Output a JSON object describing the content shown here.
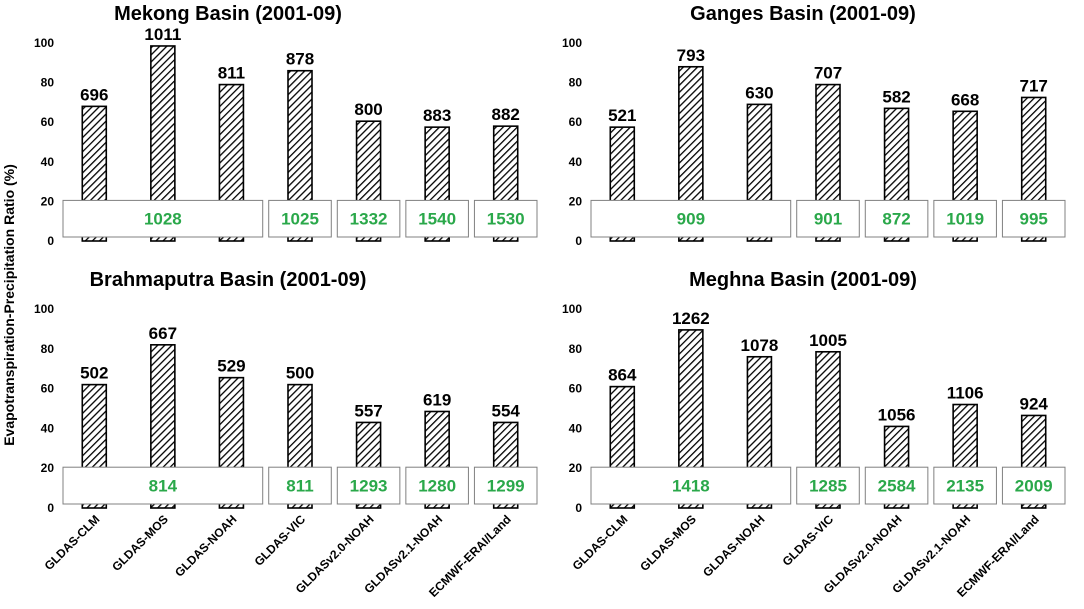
{
  "figure": {
    "y_axis_label": "Evapotranspiration-Precipitation Ratio (%)",
    "colors": {
      "bar_hatch": "#000000",
      "precip_text": "#2aa84a",
      "box_border": "#808080"
    }
  },
  "chart_data": [
    {
      "type": "bar",
      "title": "Mekong Basin (2001-09)",
      "categories": [
        "GLDAS-CLM",
        "GLDAS-MOS",
        "GLDAS-NOAH",
        "GLDAS-VIC",
        "GLDASv2.0-NOAH",
        "GLDASv2.1-NOAH",
        "ECMWF-ERAI/Land"
      ],
      "values": [
        68,
        98.5,
        79,
        86,
        60.5,
        57.5,
        58
      ],
      "bar_labels": [
        "696",
        "1011",
        "811",
        "878",
        "800",
        "883",
        "882"
      ],
      "precip_groups": [
        {
          "from": 0,
          "to": 2,
          "label": "1028"
        },
        {
          "from": 3,
          "to": 3,
          "label": "1025"
        },
        {
          "from": 4,
          "to": 4,
          "label": "1332"
        },
        {
          "from": 5,
          "to": 5,
          "label": "1540"
        },
        {
          "from": 6,
          "to": 6,
          "label": "1530"
        }
      ],
      "ylim": [
        0,
        100
      ],
      "yticks": [
        "0",
        "20",
        "40",
        "60",
        "80",
        "100"
      ],
      "show_xlabels": false
    },
    {
      "type": "bar",
      "title": "Ganges Basin (2001-09)",
      "categories": [
        "GLDAS-CLM",
        "GLDAS-MOS",
        "GLDAS-NOAH",
        "GLDAS-VIC",
        "GLDASv2.0-NOAH",
        "GLDASv2.1-NOAH",
        "ECMWF-ERAI/Land"
      ],
      "values": [
        57.5,
        88,
        69,
        79,
        67,
        65.5,
        72.5
      ],
      "bar_labels": [
        "521",
        "793",
        "630",
        "707",
        "582",
        "668",
        "717"
      ],
      "precip_groups": [
        {
          "from": 0,
          "to": 2,
          "label": "909"
        },
        {
          "from": 3,
          "to": 3,
          "label": "901"
        },
        {
          "from": 4,
          "to": 4,
          "label": "872"
        },
        {
          "from": 5,
          "to": 5,
          "label": "1019"
        },
        {
          "from": 6,
          "to": 6,
          "label": "995"
        }
      ],
      "ylim": [
        0,
        100
      ],
      "yticks": [
        "0",
        "20",
        "40",
        "60",
        "80",
        "100"
      ],
      "show_xlabels": false
    },
    {
      "type": "bar",
      "title": "Brahmaputra Basin (2001-09)",
      "categories": [
        "GLDAS-CLM",
        "GLDAS-MOS",
        "GLDAS-NOAH",
        "GLDAS-VIC",
        "GLDASv2.0-NOAH",
        "GLDASv2.1-NOAH",
        "ECMWF-ERAI/Land"
      ],
      "values": [
        62,
        82,
        65.5,
        62,
        43,
        48.5,
        43
      ],
      "bar_labels": [
        "502",
        "667",
        "529",
        "500",
        "557",
        "619",
        "554"
      ],
      "precip_groups": [
        {
          "from": 0,
          "to": 2,
          "label": "814"
        },
        {
          "from": 3,
          "to": 3,
          "label": "811"
        },
        {
          "from": 4,
          "to": 4,
          "label": "1293"
        },
        {
          "from": 5,
          "to": 5,
          "label": "1280"
        },
        {
          "from": 6,
          "to": 6,
          "label": "1299"
        }
      ],
      "ylim": [
        0,
        100
      ],
      "yticks": [
        "0",
        "20",
        "40",
        "60",
        "80",
        "100"
      ],
      "show_xlabels": true
    },
    {
      "type": "bar",
      "title": "Meghna Basin (2001-09)",
      "categories": [
        "GLDAS-CLM",
        "GLDAS-MOS",
        "GLDAS-NOAH",
        "GLDAS-VIC",
        "GLDASv2.0-NOAH",
        "GLDASv2.1-NOAH",
        "ECMWF-ERAI/Land"
      ],
      "values": [
        61,
        89.5,
        76,
        78.5,
        41,
        52,
        46.5
      ],
      "bar_labels": [
        "864",
        "1262",
        "1078",
        "1005",
        "1056",
        "1106",
        "924"
      ],
      "precip_groups": [
        {
          "from": 0,
          "to": 2,
          "label": "1418"
        },
        {
          "from": 3,
          "to": 3,
          "label": "1285"
        },
        {
          "from": 4,
          "to": 4,
          "label": "2584"
        },
        {
          "from": 5,
          "to": 5,
          "label": "2135"
        },
        {
          "from": 6,
          "to": 6,
          "label": "2009"
        }
      ],
      "ylim": [
        0,
        100
      ],
      "yticks": [
        "0",
        "20",
        "40",
        "60",
        "80",
        "100"
      ],
      "show_xlabels": true
    }
  ]
}
